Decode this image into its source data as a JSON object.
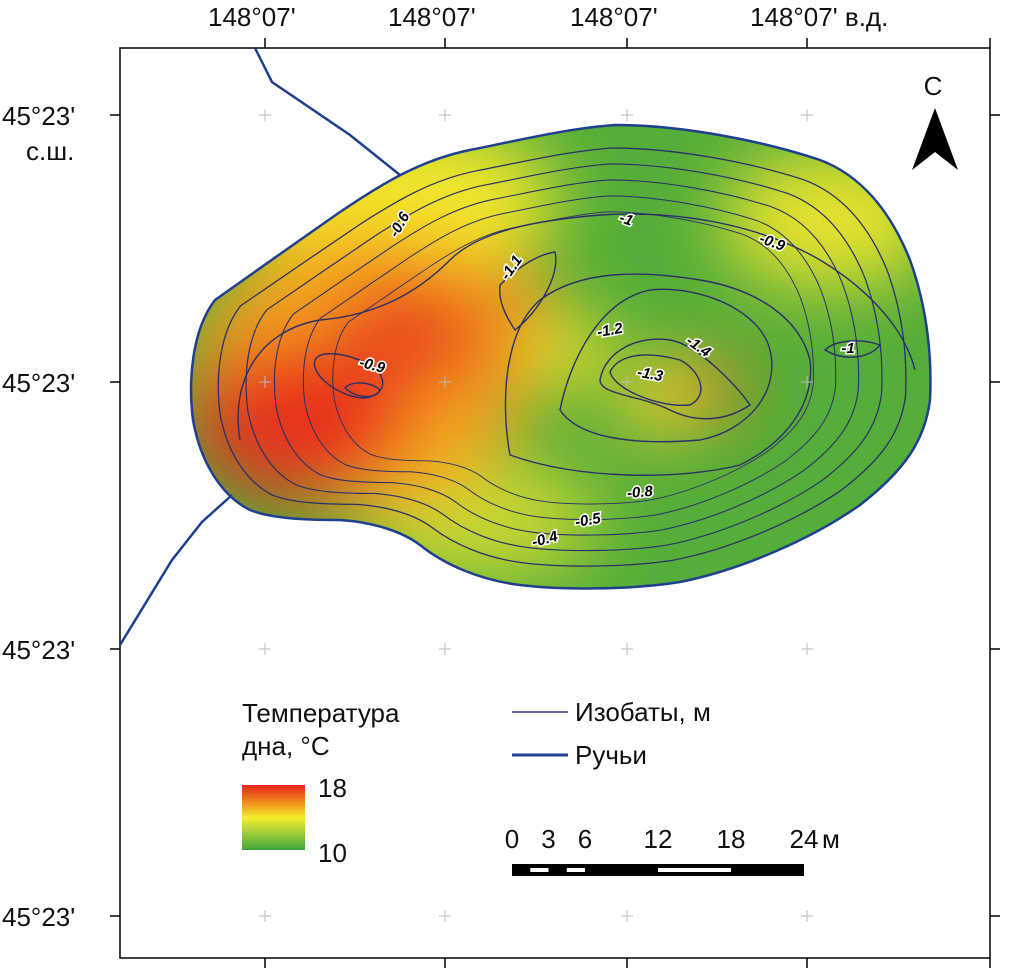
{
  "longitude_labels": [
    "148°07'",
    "148°07'",
    "148°07'",
    "148°07' в.д."
  ],
  "latitude_labels": [
    "45°23'",
    "45°23'",
    "45°23'",
    "45°23'"
  ],
  "latitude_suffix": "с.ш.",
  "north": "С",
  "contour_labels": [
    "-0.6",
    "-1.1",
    "-1",
    "-0.9",
    "-0.9",
    "-1.2",
    "-1.4",
    "-1.3",
    "-1",
    "-0.8",
    "-0.5",
    "-0.4"
  ],
  "legend": {
    "title_lines": [
      "Температура",
      "дна, °C"
    ],
    "max": 18,
    "min": 10,
    "lines": [
      "Изобаты, м",
      "Ручьи"
    ]
  },
  "scale_bar": {
    "ticks": [
      0,
      3,
      6,
      12,
      18,
      24
    ],
    "unit": "м"
  }
}
